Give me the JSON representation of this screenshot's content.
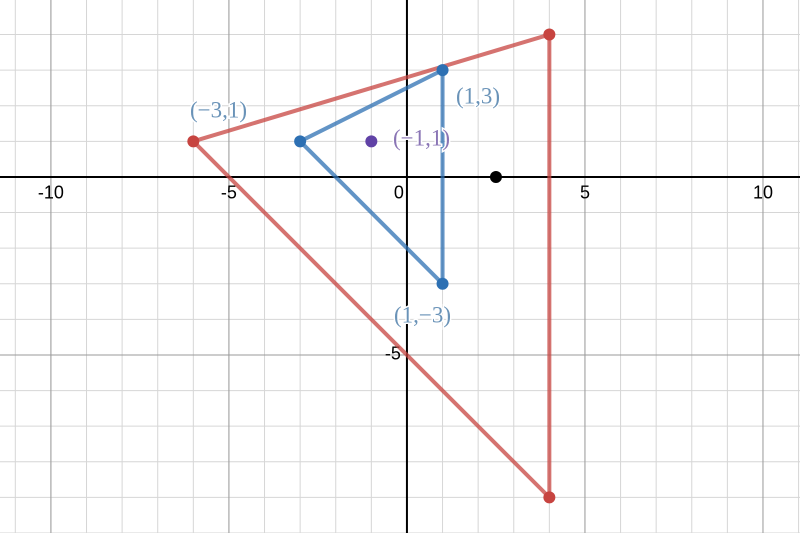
{
  "chart_data": {
    "type": "scatter",
    "xlim": [
      -11.43,
      11.04
    ],
    "ylim": [
      -10,
      4.97
    ],
    "xticks": [
      -10,
      -5,
      0,
      5,
      10
    ],
    "yticks": [
      -5
    ],
    "grid": true,
    "series": [
      {
        "color": "#c74440",
        "x": [
          -6,
          4,
          4
        ],
        "y": [
          1,
          4,
          -9
        ],
        "closed": true
      },
      {
        "color": "#2d70b3",
        "x": [
          -3,
          1,
          1
        ],
        "y": [
          1,
          3,
          -3
        ],
        "closed": true
      },
      {
        "color": "#6042a6",
        "x": [
          -1
        ],
        "y": [
          1
        ],
        "closed": false
      },
      {
        "color": "#000000",
        "x": [
          2.5
        ],
        "y": [
          0
        ],
        "closed": false
      }
    ],
    "annotations": [
      {
        "text": "(−3,1)",
        "color": "#6a93b8"
      },
      {
        "text": "(1,3)",
        "color": "#6a93b8"
      },
      {
        "text": "(−1,1)",
        "color": "#8a75b5"
      },
      {
        "text": "(1,−3)",
        "color": "#6a93b8"
      }
    ]
  }
}
